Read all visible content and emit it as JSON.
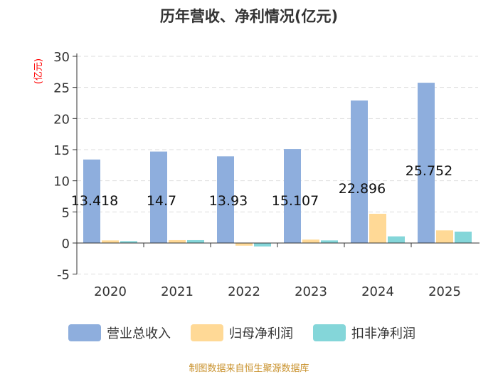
{
  "chart_data": {
    "type": "bar",
    "title": "历年营收、净利情况(亿元)",
    "ylabel": "(亿元)",
    "ylim": [
      -5,
      30
    ],
    "yticks": [
      -5,
      0,
      5,
      10,
      15,
      20,
      25,
      30
    ],
    "grid": true,
    "legend_position": "bottom",
    "categories": [
      "2020",
      "2021",
      "2022",
      "2023",
      "2024",
      "2025"
    ],
    "series": [
      {
        "name": "营业总收入",
        "color": "#8eaedd",
        "values": [
          13.418,
          14.7,
          13.93,
          15.107,
          22.896,
          25.752
        ],
        "labels": [
          "13.418",
          "14.7",
          "13.93",
          "15.107",
          "22.896",
          "25.752"
        ]
      },
      {
        "name": "归母净利润",
        "color": "#ffd996",
        "values": [
          0.42,
          0.46,
          -0.43,
          0.55,
          4.7,
          2.03
        ]
      },
      {
        "name": "扣非净利润",
        "color": "#84d6d9",
        "values": [
          0.3,
          0.46,
          -0.55,
          0.42,
          1.07,
          1.83
        ]
      }
    ]
  },
  "footer": "制图数据来自恒生聚源数据库"
}
